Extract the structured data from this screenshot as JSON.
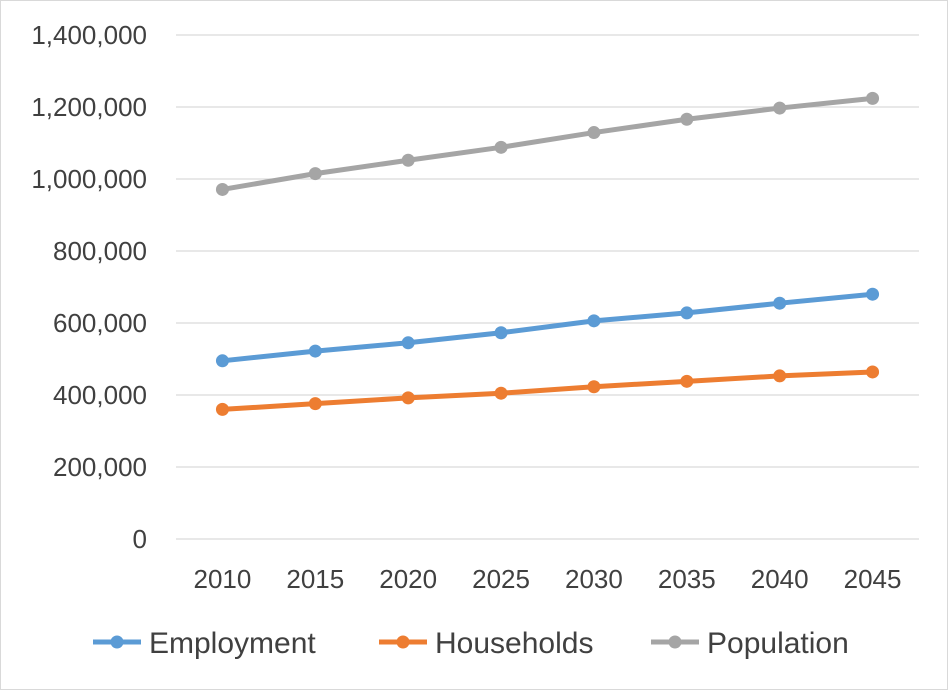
{
  "chart_data": {
    "type": "line",
    "categories": [
      "2010",
      "2015",
      "2020",
      "2025",
      "2030",
      "2035",
      "2040",
      "2045"
    ],
    "series": [
      {
        "name": "Employment",
        "color": "#5b9bd5",
        "values": [
          495000,
          522000,
          545000,
          573000,
          606000,
          628000,
          655000,
          680000
        ]
      },
      {
        "name": "Households",
        "color": "#ed7d31",
        "values": [
          360000,
          376000,
          392000,
          405000,
          423000,
          438000,
          453000,
          464000
        ]
      },
      {
        "name": "Population",
        "color": "#a5a5a5",
        "values": [
          971000,
          1015000,
          1052000,
          1088000,
          1129000,
          1166000,
          1197000,
          1224000
        ]
      }
    ],
    "yticks": [
      "0",
      "200,000",
      "400,000",
      "600,000",
      "800,000",
      "1,000,000",
      "1,200,000",
      "1,400,000"
    ],
    "ylim": [
      0,
      1400000
    ],
    "grid": true,
    "legend": "bottom"
  }
}
